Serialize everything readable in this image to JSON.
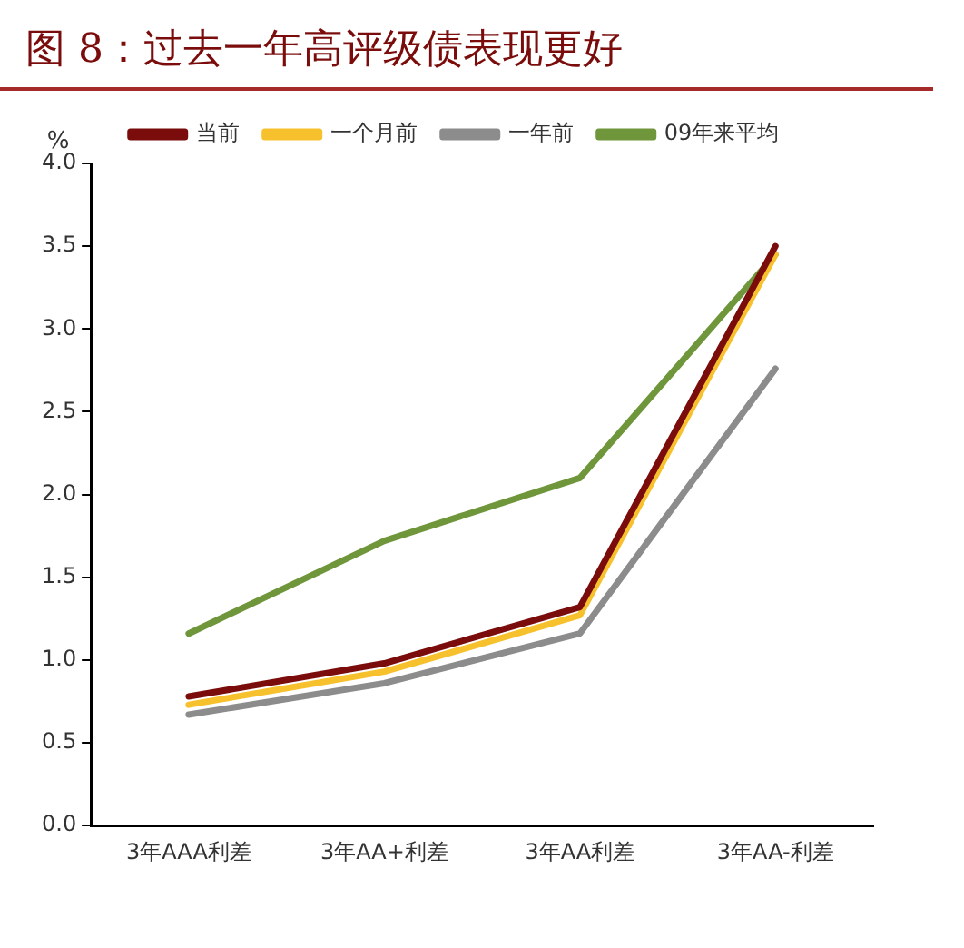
{
  "chart_data": {
    "type": "line",
    "title": "图 8：过去一年高评级债表现更好",
    "ylabel": "%",
    "categories": [
      "3年AAA利差",
      "3年AA+利差",
      "3年AA利差",
      "3年AA-利差"
    ],
    "series": [
      {
        "name": "当前",
        "color": "#7b0c0c",
        "values": [
          0.78,
          0.98,
          1.32,
          3.5
        ]
      },
      {
        "name": "一个月前",
        "color": "#f7c12d",
        "values": [
          0.73,
          0.93,
          1.27,
          3.45
        ]
      },
      {
        "name": "一年前",
        "color": "#8c8c8c",
        "values": [
          0.67,
          0.86,
          1.16,
          2.76
        ]
      },
      {
        "name": "09年来平均",
        "color": "#6f963a",
        "values": [
          1.16,
          1.72,
          2.1,
          3.45
        ]
      }
    ],
    "ylim": [
      0,
      4
    ],
    "yticks": [
      {
        "value": 0,
        "label": "0.0"
      },
      0.5,
      {
        "value": 1,
        "label": "1.0"
      },
      1.5,
      {
        "value": 2,
        "label": "2.0"
      },
      2.5,
      {
        "value": 3,
        "label": "3.0"
      },
      3.5,
      {
        "value": 4,
        "label": "4.0"
      }
    ],
    "grid": false,
    "legend": "top",
    "marker": "none",
    "line_style": "solid"
  }
}
